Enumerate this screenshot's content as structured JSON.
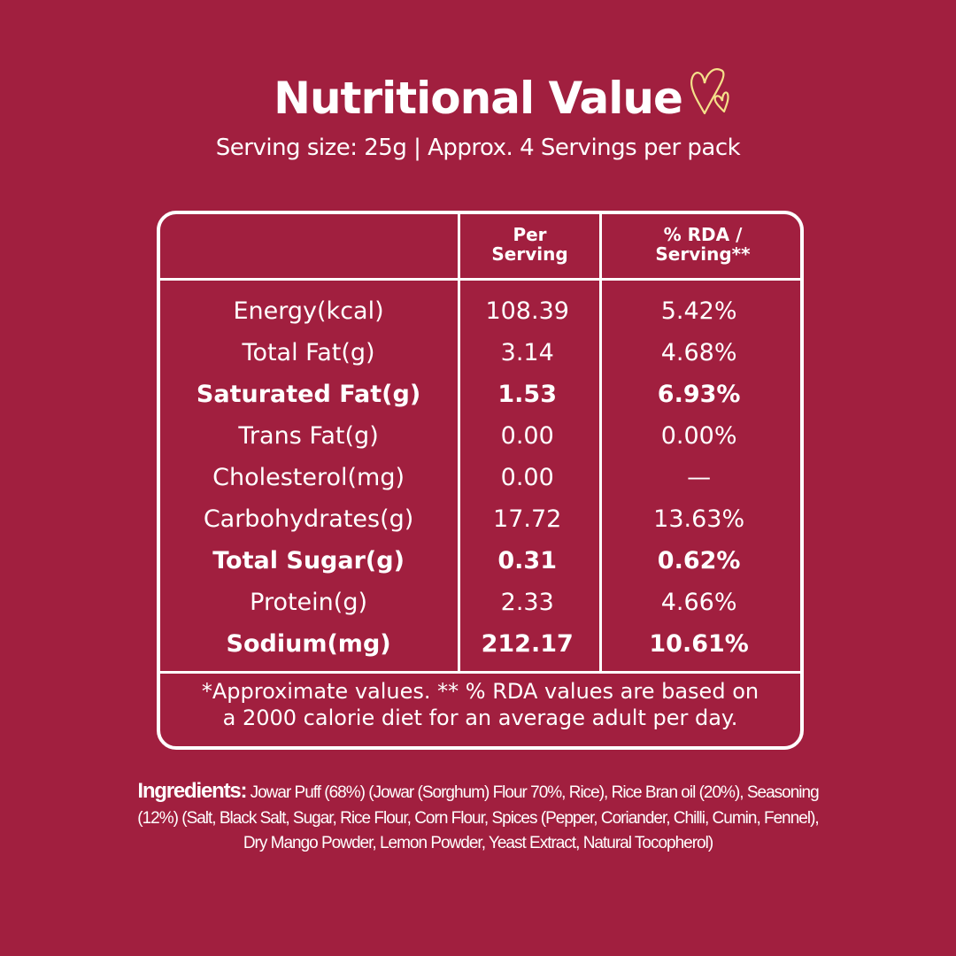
{
  "title": "Nutritional Value",
  "icon": "hearts-icon",
  "accent": "#f5e08a",
  "background": "#a11f3f",
  "subtitle": "Serving size: 25g | Approx. 4 Servings per pack",
  "table": {
    "headers": {
      "per_serving": "Per\nServing",
      "rda": "% RDA /\nServing**"
    },
    "rows": [
      {
        "label": "Energy(kcal)",
        "per": "108.39",
        "rda": "5.42%",
        "bold": false
      },
      {
        "label": "Total Fat(g)",
        "per": "3.14",
        "rda": "4.68%",
        "bold": false
      },
      {
        "label": "Saturated Fat(g)",
        "per": "1.53",
        "rda": "6.93%",
        "bold": true
      },
      {
        "label": "Trans Fat(g)",
        "per": "0.00",
        "rda": "0.00%",
        "bold": false
      },
      {
        "label": "Cholesterol(mg)",
        "per": "0.00",
        "rda": "—",
        "bold": false
      },
      {
        "label": "Carbohydrates(g)",
        "per": "17.72",
        "rda": "13.63%",
        "bold": false
      },
      {
        "label": "Total Sugar(g)",
        "per": "0.31",
        "rda": "0.62%",
        "bold": true
      },
      {
        "label": "Protein(g)",
        "per": "2.33",
        "rda": "4.66%",
        "bold": false
      },
      {
        "label": "Sodium(mg)",
        "per": "212.17",
        "rda": "10.61%",
        "bold": true
      }
    ],
    "footnote_1": "*Approximate values. ** % RDA values are based on",
    "footnote_2": "a 2000 calorie diet for an average adult per day."
  },
  "ingredients": {
    "label": "Ingredients:",
    "text": "Jowar Puff (68%) (Jowar (Sorghum) Flour 70%, Rice), Rice Bran oil (20%), Seasoning (12%) (Salt, Black Salt, Sugar, Rice Flour, Corn Flour, Spices (Pepper, Coriander, Chilli, Cumin, Fennel), Dry Mango Powder, Lemon Powder, Yeast Extract, Natural Tocopherol)"
  }
}
